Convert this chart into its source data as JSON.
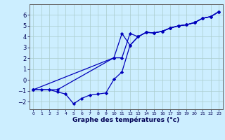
{
  "xlabel": "Graphe des températures (°c)",
  "background_color": "#cceeff",
  "grid_color": "#aacccc",
  "line_color": "#0000bb",
  "xlim": [
    -0.5,
    23.5
  ],
  "ylim": [
    -2.7,
    7.0
  ],
  "yticks": [
    -2,
    -1,
    0,
    1,
    2,
    3,
    4,
    5,
    6
  ],
  "xticks": [
    0,
    1,
    2,
    3,
    4,
    5,
    6,
    7,
    8,
    9,
    10,
    11,
    12,
    13,
    14,
    15,
    16,
    17,
    18,
    19,
    20,
    21,
    22,
    23
  ],
  "series1_x": [
    0,
    1,
    2,
    3,
    4,
    5,
    6,
    7,
    8,
    9,
    10,
    11,
    12,
    13,
    14,
    15,
    16,
    17,
    18,
    19,
    20,
    21,
    22,
    23
  ],
  "series1_y": [
    -0.9,
    -0.9,
    -0.9,
    -1.1,
    -1.3,
    -2.2,
    -1.7,
    -1.4,
    -1.3,
    -1.2,
    0.05,
    0.75,
    3.2,
    4.0,
    4.4,
    4.35,
    4.5,
    4.8,
    5.0,
    5.1,
    5.3,
    5.7,
    5.85,
    6.3
  ],
  "series2_x": [
    0,
    3,
    10,
    11,
    12,
    13,
    14,
    15,
    16,
    17,
    18,
    19,
    20,
    21,
    22,
    23
  ],
  "series2_y": [
    -0.9,
    -0.9,
    2.05,
    2.05,
    4.3,
    4.0,
    4.4,
    4.35,
    4.5,
    4.8,
    5.0,
    5.1,
    5.3,
    5.7,
    5.85,
    6.3
  ],
  "series3_x": [
    0,
    10,
    11,
    12,
    13,
    14,
    15,
    16,
    17,
    18,
    19,
    20,
    21,
    22,
    23
  ],
  "series3_y": [
    -0.9,
    2.05,
    4.3,
    3.2,
    4.0,
    4.4,
    4.35,
    4.5,
    4.8,
    5.0,
    5.1,
    5.3,
    5.7,
    5.85,
    6.3
  ]
}
